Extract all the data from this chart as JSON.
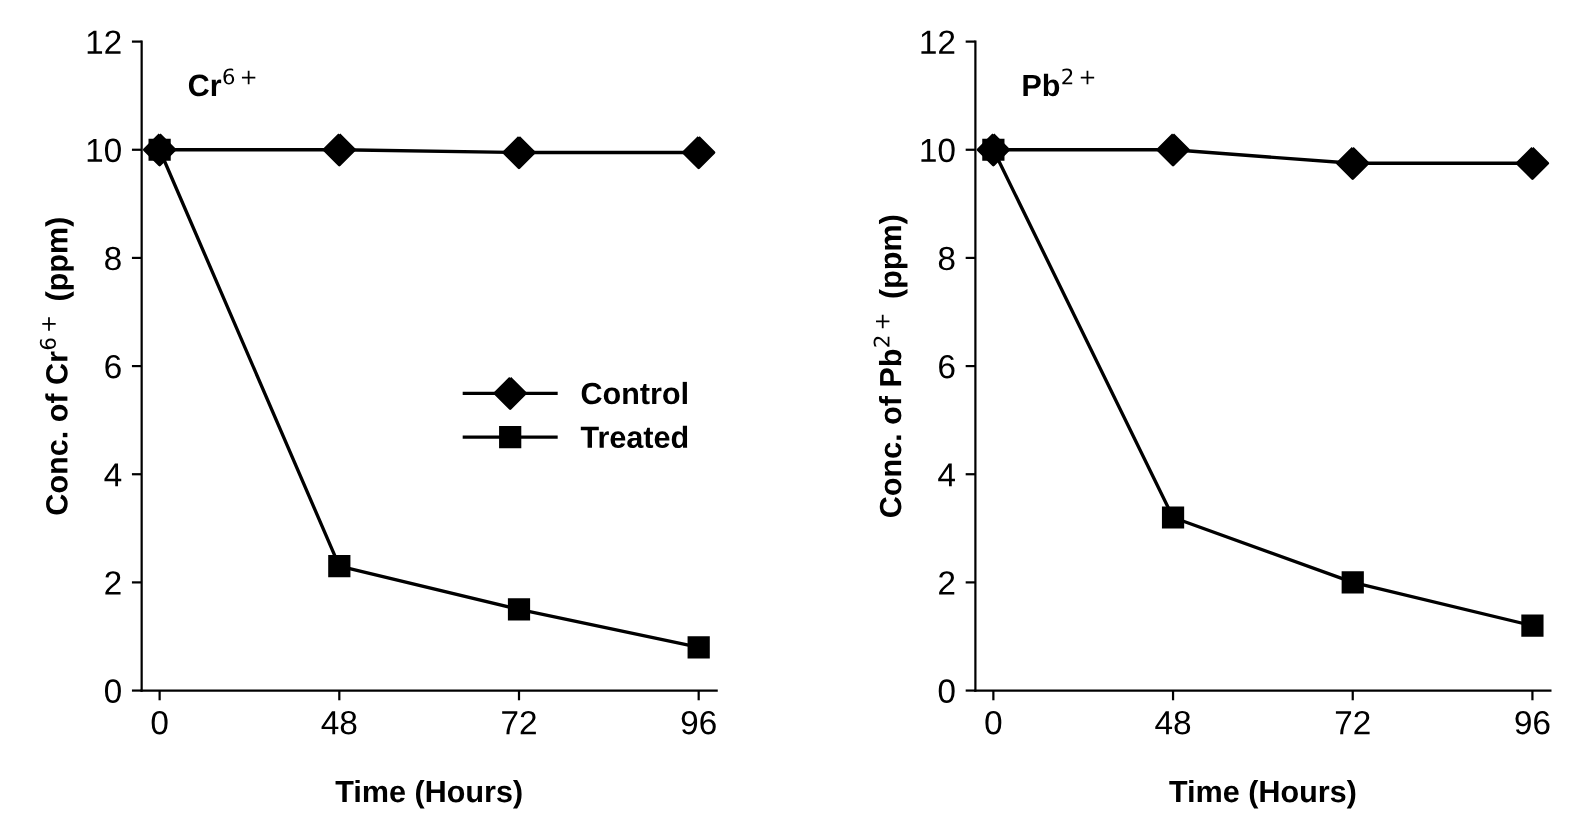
{
  "chart_data": [
    {
      "type": "line",
      "title": "Cr$^{6+}$",
      "xlabel": "Time (Hours)",
      "ylabel": "Conc. of Cr$^{6+}$ (ppm)",
      "categories": [
        "0",
        "48",
        "72",
        "96"
      ],
      "ylim": [
        0,
        12
      ],
      "yticks": [
        0,
        2,
        4,
        6,
        8,
        10,
        12
      ],
      "grid": false,
      "legend": "right",
      "series": [
        {
          "name": "Control",
          "color": "#000000",
          "marker": "diamond",
          "values": [
            10,
            10,
            9.95,
            9.95
          ]
        },
        {
          "name": "Treated",
          "color": "#000000",
          "marker": "square",
          "values": [
            10,
            2.3,
            1.5,
            0.8
          ]
        }
      ]
    },
    {
      "type": "line",
      "title": "Pb$^{2+}$",
      "xlabel": "Time (Hours)",
      "ylabel": "Conc. of Pb$^{2+}$ (ppm)",
      "categories": [
        "0",
        "48",
        "72",
        "96"
      ],
      "ylim": [
        0,
        12
      ],
      "yticks": [
        0,
        2,
        4,
        6,
        8,
        10,
        12
      ],
      "grid": false,
      "series": [
        {
          "color": "#000000",
          "marker": "diamond",
          "values": [
            10,
            10,
            9.75,
            9.75
          ]
        },
        {
          "color": "#000000",
          "marker": "square",
          "values": [
            10,
            3.2,
            2.0,
            1.2
          ]
        }
      ]
    }
  ]
}
